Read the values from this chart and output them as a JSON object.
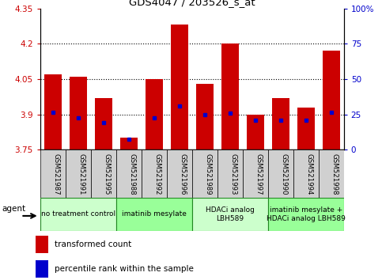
{
  "title": "GDS4047 / 203526_s_at",
  "samples": [
    "GSM521987",
    "GSM521991",
    "GSM521995",
    "GSM521988",
    "GSM521992",
    "GSM521996",
    "GSM521989",
    "GSM521993",
    "GSM521997",
    "GSM521990",
    "GSM521994",
    "GSM521998"
  ],
  "bar_values": [
    4.07,
    4.06,
    3.97,
    3.8,
    4.05,
    4.28,
    4.03,
    4.2,
    3.9,
    3.97,
    3.93,
    4.17
  ],
  "percentile_values": [
    3.91,
    3.885,
    3.865,
    3.795,
    3.885,
    3.935,
    3.9,
    3.905,
    3.875,
    3.875,
    3.875,
    3.91
  ],
  "bar_bottom": 3.75,
  "ylim_left": [
    3.75,
    4.35
  ],
  "ylim_right": [
    0,
    100
  ],
  "yticks_left": [
    3.75,
    3.9,
    4.05,
    4.2,
    4.35
  ],
  "yticks_right": [
    0,
    25,
    50,
    75,
    100
  ],
  "ytick_labels_left": [
    "3.75",
    "3.9",
    "4.05",
    "4.2",
    "4.35"
  ],
  "ytick_labels_right": [
    "0",
    "25",
    "50",
    "75",
    "100%"
  ],
  "bar_color": "#cc0000",
  "percentile_color": "#0000cc",
  "grid_color": "#000000",
  "groups": [
    {
      "label": "no treatment control",
      "start": 0,
      "end": 3,
      "color": "#ccffcc"
    },
    {
      "label": "imatinib mesylate",
      "start": 3,
      "end": 6,
      "color": "#99ff99"
    },
    {
      "label": "HDACi analog\nLBH589",
      "start": 6,
      "end": 9,
      "color": "#ccffcc"
    },
    {
      "label": "imatinib mesylate +\nHDACi analog LBH589",
      "start": 9,
      "end": 12,
      "color": "#99ff99"
    }
  ],
  "agent_label": "agent",
  "legend_items": [
    {
      "label": "transformed count",
      "color": "#cc0000"
    },
    {
      "label": "percentile rank within the sample",
      "color": "#0000cc"
    }
  ],
  "bg_color": "#ffffff",
  "plot_bg_color": "#ffffff",
  "bar_width": 0.7,
  "sample_box_color": "#d0d0d0"
}
